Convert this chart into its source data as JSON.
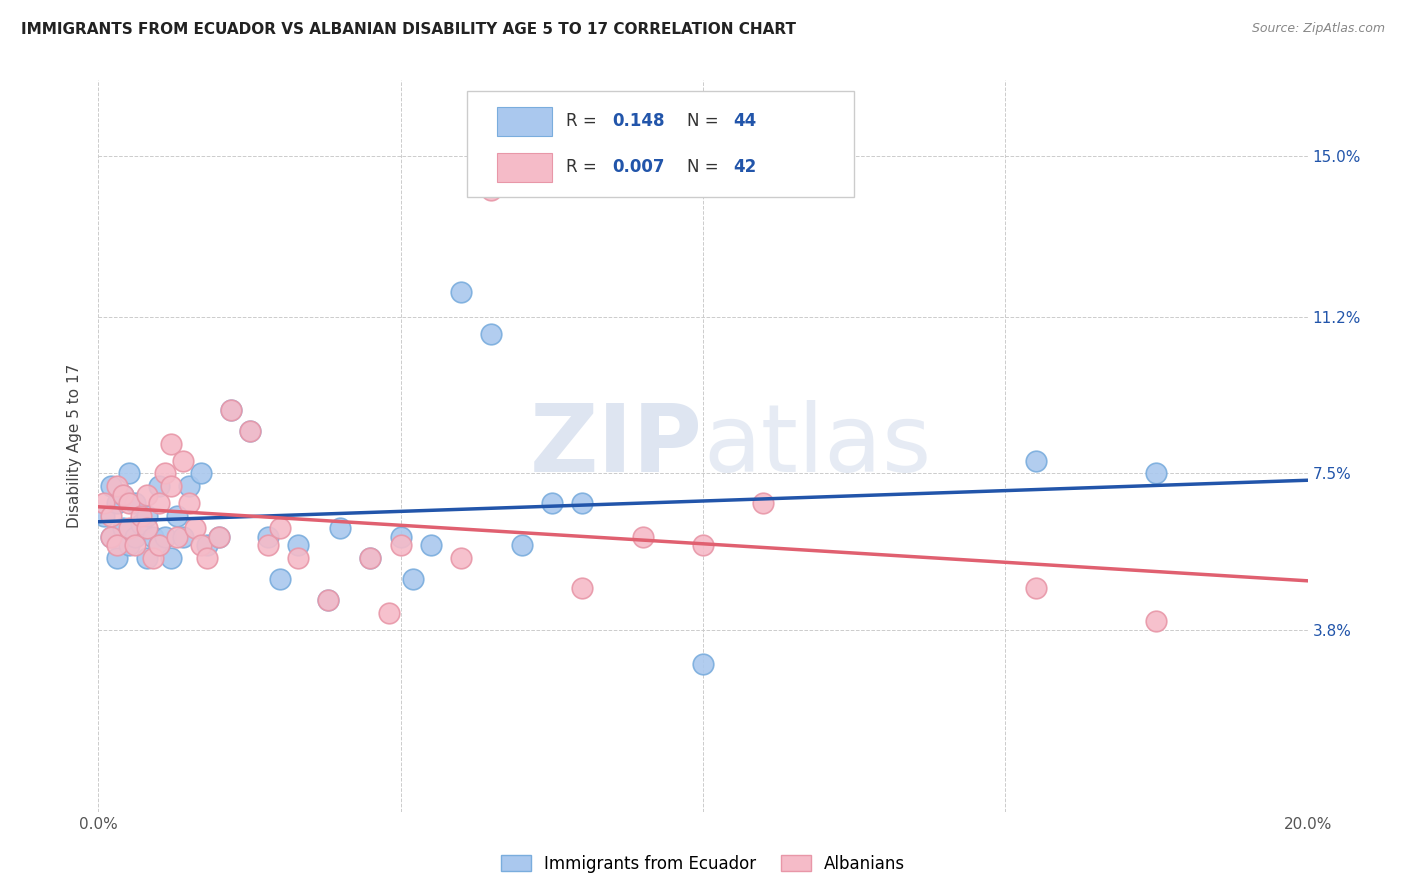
{
  "title": "IMMIGRANTS FROM ECUADOR VS ALBANIAN DISABILITY AGE 5 TO 17 CORRELATION CHART",
  "source": "Source: ZipAtlas.com",
  "ylabel": "Disability Age 5 to 17",
  "xlim": [
    0.0,
    0.2
  ],
  "ylim": [
    -0.005,
    0.168
  ],
  "xtick_positions": [
    0.0,
    0.05,
    0.1,
    0.15,
    0.2
  ],
  "xticklabels": [
    "0.0%",
    "",
    "",
    "",
    "20.0%"
  ],
  "ytick_positions": [
    0.038,
    0.075,
    0.112,
    0.15
  ],
  "ytick_labels": [
    "3.8%",
    "7.5%",
    "11.2%",
    "15.0%"
  ],
  "ecuador_R": "0.148",
  "ecuador_N": "44",
  "albanian_R": "0.007",
  "albanian_N": "42",
  "ecuador_x": [
    0.001,
    0.002,
    0.002,
    0.003,
    0.003,
    0.004,
    0.004,
    0.005,
    0.005,
    0.006,
    0.006,
    0.007,
    0.008,
    0.008,
    0.009,
    0.01,
    0.01,
    0.011,
    0.012,
    0.013,
    0.014,
    0.015,
    0.017,
    0.018,
    0.02,
    0.022,
    0.025,
    0.028,
    0.03,
    0.033,
    0.038,
    0.04,
    0.045,
    0.05,
    0.052,
    0.055,
    0.06,
    0.065,
    0.07,
    0.075,
    0.08,
    0.1,
    0.155,
    0.175
  ],
  "ecuador_y": [
    0.065,
    0.06,
    0.072,
    0.055,
    0.068,
    0.062,
    0.07,
    0.058,
    0.075,
    0.06,
    0.068,
    0.063,
    0.055,
    0.065,
    0.06,
    0.058,
    0.072,
    0.06,
    0.055,
    0.065,
    0.06,
    0.072,
    0.075,
    0.058,
    0.06,
    0.09,
    0.085,
    0.06,
    0.05,
    0.058,
    0.045,
    0.062,
    0.055,
    0.06,
    0.05,
    0.058,
    0.118,
    0.108,
    0.058,
    0.068,
    0.068,
    0.03,
    0.078,
    0.075
  ],
  "albanian_x": [
    0.001,
    0.002,
    0.002,
    0.003,
    0.003,
    0.004,
    0.005,
    0.005,
    0.006,
    0.007,
    0.008,
    0.008,
    0.009,
    0.01,
    0.01,
    0.011,
    0.012,
    0.012,
    0.013,
    0.014,
    0.015,
    0.016,
    0.017,
    0.018,
    0.02,
    0.022,
    0.025,
    0.028,
    0.03,
    0.033,
    0.038,
    0.045,
    0.048,
    0.05,
    0.06,
    0.065,
    0.08,
    0.09,
    0.1,
    0.11,
    0.155,
    0.175
  ],
  "albanian_y": [
    0.068,
    0.06,
    0.065,
    0.058,
    0.072,
    0.07,
    0.062,
    0.068,
    0.058,
    0.065,
    0.062,
    0.07,
    0.055,
    0.058,
    0.068,
    0.075,
    0.072,
    0.082,
    0.06,
    0.078,
    0.068,
    0.062,
    0.058,
    0.055,
    0.06,
    0.09,
    0.085,
    0.058,
    0.062,
    0.055,
    0.045,
    0.055,
    0.042,
    0.058,
    0.055,
    0.142,
    0.048,
    0.06,
    0.058,
    0.068,
    0.048,
    0.04
  ],
  "ecuador_line_color": "#2255aa",
  "albanian_line_color": "#e06070",
  "ecuador_dot_facecolor": "#aac8ee",
  "ecuador_dot_edgecolor": "#7aaddd",
  "albanian_dot_facecolor": "#f5bbc8",
  "albanian_dot_edgecolor": "#e897a8",
  "grid_color": "#cccccc",
  "background_color": "#ffffff",
  "title_fontsize": 11,
  "source_fontsize": 9,
  "ylabel_fontsize": 11,
  "tick_fontsize": 11,
  "right_tick_color": "#2255aa"
}
